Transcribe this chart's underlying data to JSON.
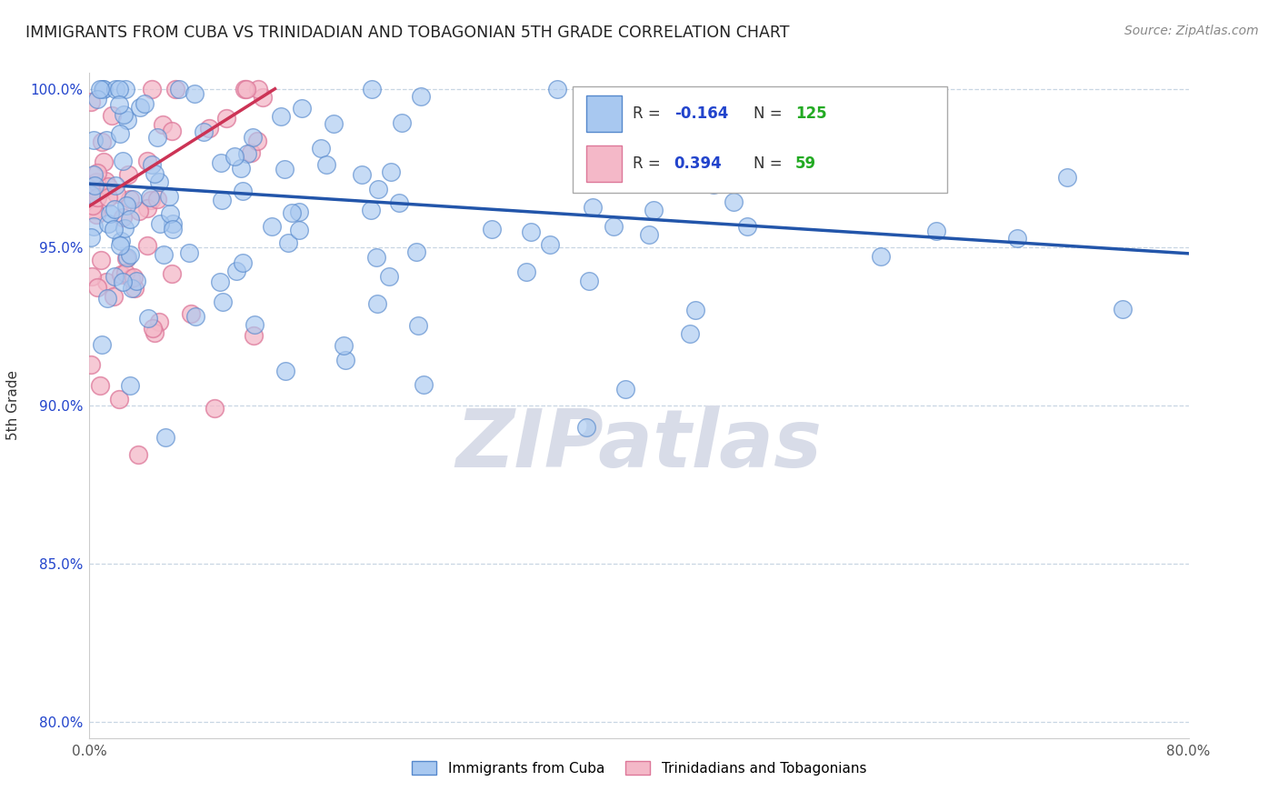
{
  "title": "IMMIGRANTS FROM CUBA VS TRINIDADIAN AND TOBAGONIAN 5TH GRADE CORRELATION CHART",
  "source": "Source: ZipAtlas.com",
  "ylabel": "5th Grade",
  "xlim": [
    0.0,
    0.8
  ],
  "ylim": [
    0.795,
    1.005
  ],
  "yticks": [
    0.8,
    0.85,
    0.9,
    0.95,
    1.0
  ],
  "ytick_labels": [
    "80.0%",
    "85.0%",
    "90.0%",
    "95.0%",
    "100.0%"
  ],
  "xticks": [
    0.0,
    0.1,
    0.2,
    0.3,
    0.4,
    0.5,
    0.6,
    0.7,
    0.8
  ],
  "xtick_labels": [
    "0.0%",
    "",
    "",
    "",
    "",
    "",
    "",
    "",
    "80.0%"
  ],
  "blue_r": -0.164,
  "blue_n": 125,
  "pink_r": 0.394,
  "pink_n": 59,
  "blue_color": "#a8c8f0",
  "blue_edge": "#5588cc",
  "pink_color": "#f4b8c8",
  "pink_edge": "#dd7799",
  "blue_line_color": "#2255aa",
  "pink_line_color": "#cc3355",
  "legend_r_color": "#2244cc",
  "legend_n_color": "#22aa22",
  "background_color": "#ffffff",
  "blue_line_x": [
    0.0,
    0.8
  ],
  "blue_line_y": [
    0.97,
    0.948
  ],
  "pink_line_x": [
    0.0,
    0.135
  ],
  "pink_line_y": [
    0.963,
    1.0
  ],
  "watermark_text": "ZIPatlas",
  "watermark_color": "#d8dce8"
}
